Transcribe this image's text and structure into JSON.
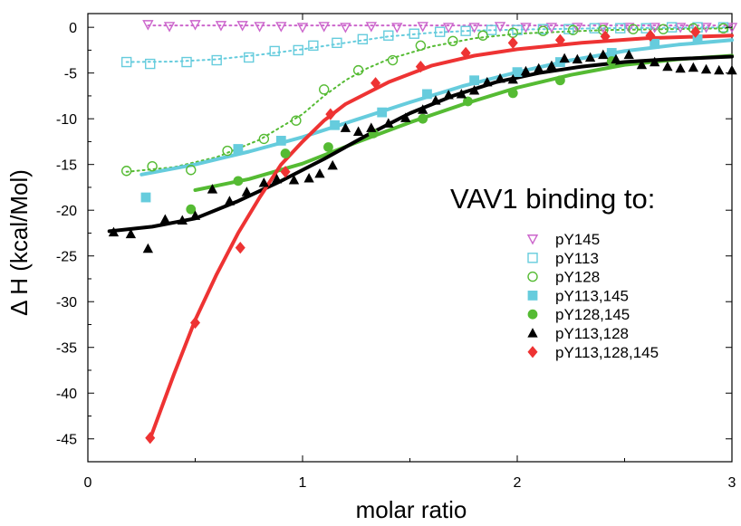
{
  "chart_data": {
    "type": "scatter",
    "title": "",
    "xlabel": "molar ratio",
    "ylabel": "Δ H (kcal/Mol)",
    "xlim": [
      0,
      3
    ],
    "ylim": [
      -47.5,
      1.5
    ],
    "xticks": [
      0,
      1,
      2,
      3
    ],
    "yticks": [
      0,
      -5,
      -10,
      -15,
      -20,
      -25,
      -30,
      -35,
      -40,
      -45
    ],
    "grid": false,
    "legend_title": "VAV1 binding to:",
    "legend_position": "right",
    "series": [
      {
        "name": "pY145",
        "color": "#cc66cc",
        "marker": "triangle-down-open",
        "line": "dotted",
        "points": [
          [
            0.28,
            0.3
          ],
          [
            0.38,
            0.1
          ],
          [
            0.5,
            0.3
          ],
          [
            0.62,
            0.2
          ],
          [
            0.72,
            0.2
          ],
          [
            0.8,
            0.1
          ],
          [
            0.9,
            0.1
          ],
          [
            1.0,
            0.0
          ],
          [
            1.1,
            0.1
          ],
          [
            1.2,
            0.0
          ],
          [
            1.32,
            0.1
          ],
          [
            1.44,
            0.0
          ],
          [
            1.56,
            0.1
          ],
          [
            1.68,
            0.0
          ],
          [
            1.8,
            0.0
          ],
          [
            1.92,
            0.1
          ],
          [
            2.04,
            0.0
          ],
          [
            2.16,
            0.0
          ],
          [
            2.28,
            0.0
          ],
          [
            2.4,
            0.0
          ],
          [
            2.52,
            0.0
          ],
          [
            2.64,
            0.0
          ],
          [
            2.76,
            0.0
          ],
          [
            2.88,
            0.0
          ],
          [
            3.0,
            0.0
          ]
        ],
        "fit": [
          [
            0.28,
            0.2
          ],
          [
            3.0,
            0.2
          ]
        ]
      },
      {
        "name": "pY113",
        "color": "#66ccdd",
        "marker": "square-open",
        "line": "dotted",
        "points": [
          [
            0.18,
            -3.8
          ],
          [
            0.29,
            -4.0
          ],
          [
            0.46,
            -3.8
          ],
          [
            0.6,
            -3.6
          ],
          [
            0.75,
            -3.3
          ],
          [
            0.87,
            -2.6
          ],
          [
            0.98,
            -2.5
          ],
          [
            1.05,
            -2.0
          ],
          [
            1.16,
            -1.7
          ],
          [
            1.28,
            -1.3
          ],
          [
            1.4,
            -0.9
          ],
          [
            1.52,
            -0.7
          ],
          [
            1.64,
            -0.5
          ],
          [
            1.76,
            -0.4
          ],
          [
            1.88,
            -0.3
          ],
          [
            2.0,
            -0.3
          ],
          [
            2.12,
            -0.2
          ],
          [
            2.24,
            -0.2
          ],
          [
            2.36,
            -0.1
          ],
          [
            2.48,
            -0.1
          ],
          [
            2.6,
            -0.1
          ],
          [
            2.72,
            0.0
          ],
          [
            2.84,
            0.0
          ],
          [
            2.96,
            0.0
          ]
        ],
        "fit": [
          [
            0.18,
            -3.8
          ],
          [
            0.4,
            -3.75
          ],
          [
            0.6,
            -3.5
          ],
          [
            0.8,
            -3.0
          ],
          [
            1.0,
            -2.4
          ],
          [
            1.2,
            -1.7
          ],
          [
            1.4,
            -1.0
          ],
          [
            1.6,
            -0.6
          ],
          [
            1.8,
            -0.35
          ],
          [
            2.0,
            -0.25
          ],
          [
            2.4,
            -0.1
          ],
          [
            3.0,
            0.0
          ]
        ]
      },
      {
        "name": "pY128",
        "color": "#55bb33",
        "marker": "circle-open",
        "line": "dotted",
        "points": [
          [
            0.18,
            -15.7
          ],
          [
            0.3,
            -15.2
          ],
          [
            0.48,
            -15.6
          ],
          [
            0.65,
            -13.5
          ],
          [
            0.82,
            -12.2
          ],
          [
            0.97,
            -10.2
          ],
          [
            1.1,
            -6.8
          ],
          [
            1.26,
            -4.7
          ],
          [
            1.42,
            -3.6
          ],
          [
            1.55,
            -2.0
          ],
          [
            1.7,
            -1.5
          ],
          [
            1.84,
            -0.9
          ],
          [
            1.98,
            -0.6
          ],
          [
            2.12,
            -0.4
          ],
          [
            2.26,
            -0.3
          ],
          [
            2.4,
            -0.3
          ],
          [
            2.54,
            -0.2
          ],
          [
            2.68,
            -0.2
          ],
          [
            2.82,
            -0.1
          ],
          [
            2.96,
            -0.1
          ]
        ],
        "fit": [
          [
            0.18,
            -15.8
          ],
          [
            0.4,
            -15.3
          ],
          [
            0.6,
            -14.2
          ],
          [
            0.8,
            -12.3
          ],
          [
            1.0,
            -9.5
          ],
          [
            1.1,
            -7.5
          ],
          [
            1.2,
            -5.8
          ],
          [
            1.3,
            -4.5
          ],
          [
            1.4,
            -3.5
          ],
          [
            1.6,
            -2.1
          ],
          [
            1.8,
            -1.2
          ],
          [
            2.0,
            -0.7
          ],
          [
            2.4,
            -0.3
          ],
          [
            3.0,
            -0.1
          ]
        ]
      },
      {
        "name": "pY113,145",
        "color": "#66ccdd",
        "marker": "square",
        "line": "solid",
        "points": [
          [
            0.27,
            -18.6
          ],
          [
            0.7,
            -13.3
          ],
          [
            0.9,
            -12.4
          ],
          [
            1.15,
            -10.7
          ],
          [
            1.37,
            -9.3
          ],
          [
            1.58,
            -7.3
          ],
          [
            1.8,
            -5.8
          ],
          [
            2.0,
            -4.9
          ],
          [
            2.2,
            -3.8
          ],
          [
            2.44,
            -2.8
          ],
          [
            2.64,
            -1.8
          ],
          [
            2.84,
            -1.3
          ]
        ],
        "fit": [
          [
            0.25,
            -16.1
          ],
          [
            0.5,
            -15.0
          ],
          [
            0.75,
            -13.6
          ],
          [
            1.0,
            -12.0
          ],
          [
            1.25,
            -10.1
          ],
          [
            1.5,
            -8.2
          ],
          [
            1.75,
            -6.4
          ],
          [
            2.0,
            -4.9
          ],
          [
            2.25,
            -3.6
          ],
          [
            2.5,
            -2.6
          ],
          [
            2.75,
            -1.9
          ],
          [
            3.0,
            -1.4
          ]
        ]
      },
      {
        "name": "pY128,145",
        "color": "#55bb33",
        "marker": "circle",
        "line": "solid",
        "points": [
          [
            0.48,
            -19.9
          ],
          [
            0.7,
            -16.8
          ],
          [
            0.92,
            -13.8
          ],
          [
            1.12,
            -13.1
          ],
          [
            1.33,
            -11.6
          ],
          [
            1.56,
            -10.0
          ],
          [
            1.77,
            -8.1
          ],
          [
            1.98,
            -7.2
          ],
          [
            2.2,
            -5.8
          ],
          [
            2.44,
            -3.7
          ]
        ],
        "fit": [
          [
            0.5,
            -17.8
          ],
          [
            0.75,
            -16.6
          ],
          [
            1.0,
            -14.9
          ],
          [
            1.25,
            -12.6
          ],
          [
            1.5,
            -10.4
          ],
          [
            1.75,
            -8.4
          ],
          [
            2.0,
            -6.6
          ],
          [
            2.25,
            -5.2
          ],
          [
            2.5,
            -4.1
          ],
          [
            2.75,
            -3.5
          ],
          [
            3.0,
            -3.1
          ]
        ]
      },
      {
        "name": "pY113,128",
        "color": "#000000",
        "marker": "triangle",
        "line": "solid",
        "points": [
          [
            0.12,
            -22.4
          ],
          [
            0.2,
            -22.6
          ],
          [
            0.28,
            -24.2
          ],
          [
            0.36,
            -21.0
          ],
          [
            0.44,
            -21.1
          ],
          [
            0.5,
            -20.6
          ],
          [
            0.58,
            -17.7
          ],
          [
            0.66,
            -19.0
          ],
          [
            0.74,
            -18.0
          ],
          [
            0.82,
            -17.0
          ],
          [
            0.88,
            -16.6
          ],
          [
            0.96,
            -16.7
          ],
          [
            1.03,
            -16.5
          ],
          [
            1.08,
            -16.0
          ],
          [
            1.14,
            -15.1
          ],
          [
            1.2,
            -11.0
          ],
          [
            1.26,
            -11.4
          ],
          [
            1.32,
            -11.0
          ],
          [
            1.4,
            -10.5
          ],
          [
            1.48,
            -9.9
          ],
          [
            1.56,
            -9.0
          ],
          [
            1.62,
            -8.0
          ],
          [
            1.68,
            -7.4
          ],
          [
            1.74,
            -7.3
          ],
          [
            1.8,
            -6.9
          ],
          [
            1.86,
            -6.0
          ],
          [
            1.92,
            -5.6
          ],
          [
            1.98,
            -5.7
          ],
          [
            2.04,
            -4.8
          ],
          [
            2.1,
            -4.5
          ],
          [
            2.16,
            -4.2
          ],
          [
            2.22,
            -3.4
          ],
          [
            2.28,
            -3.5
          ],
          [
            2.34,
            -3.3
          ],
          [
            2.4,
            -3.0
          ],
          [
            2.46,
            -3.5
          ],
          [
            2.52,
            -3.0
          ],
          [
            2.58,
            -4.1
          ],
          [
            2.64,
            -3.8
          ],
          [
            2.7,
            -4.3
          ],
          [
            2.76,
            -4.5
          ],
          [
            2.82,
            -4.4
          ],
          [
            2.88,
            -4.6
          ],
          [
            2.94,
            -4.7
          ],
          [
            3.0,
            -4.7
          ]
        ],
        "fit": [
          [
            0.1,
            -22.3
          ],
          [
            0.3,
            -21.8
          ],
          [
            0.5,
            -20.9
          ],
          [
            0.7,
            -19.0
          ],
          [
            0.9,
            -16.8
          ],
          [
            1.1,
            -14.4
          ],
          [
            1.3,
            -11.8
          ],
          [
            1.5,
            -9.4
          ],
          [
            1.7,
            -7.5
          ],
          [
            1.9,
            -6.0
          ],
          [
            2.1,
            -5.0
          ],
          [
            2.3,
            -4.3
          ],
          [
            2.5,
            -3.8
          ],
          [
            2.7,
            -3.5
          ],
          [
            3.0,
            -3.2
          ]
        ]
      },
      {
        "name": "pY113,128,145",
        "color": "#ee3333",
        "marker": "diamond",
        "line": "solid",
        "points": [
          [
            0.29,
            -44.9
          ],
          [
            0.5,
            -32.3
          ],
          [
            0.71,
            -24.1
          ],
          [
            0.92,
            -15.8
          ],
          [
            1.13,
            -9.5
          ],
          [
            1.34,
            -6.1
          ],
          [
            1.55,
            -4.3
          ],
          [
            1.76,
            -2.8
          ],
          [
            1.98,
            -1.7
          ],
          [
            2.2,
            -1.4
          ],
          [
            2.41,
            -1.0
          ],
          [
            2.62,
            -0.9
          ],
          [
            2.83,
            -0.5
          ]
        ],
        "fit": [
          [
            0.29,
            -45.0
          ],
          [
            0.4,
            -38.0
          ],
          [
            0.5,
            -32.0
          ],
          [
            0.6,
            -27.0
          ],
          [
            0.7,
            -22.5
          ],
          [
            0.8,
            -18.6
          ],
          [
            0.9,
            -15.0
          ],
          [
            1.0,
            -12.5
          ],
          [
            1.1,
            -10.2
          ],
          [
            1.2,
            -8.4
          ],
          [
            1.4,
            -6.0
          ],
          [
            1.6,
            -4.2
          ],
          [
            1.8,
            -3.1
          ],
          [
            2.0,
            -2.4
          ],
          [
            2.3,
            -1.7
          ],
          [
            2.6,
            -1.2
          ],
          [
            3.0,
            -0.9
          ]
        ]
      }
    ]
  }
}
